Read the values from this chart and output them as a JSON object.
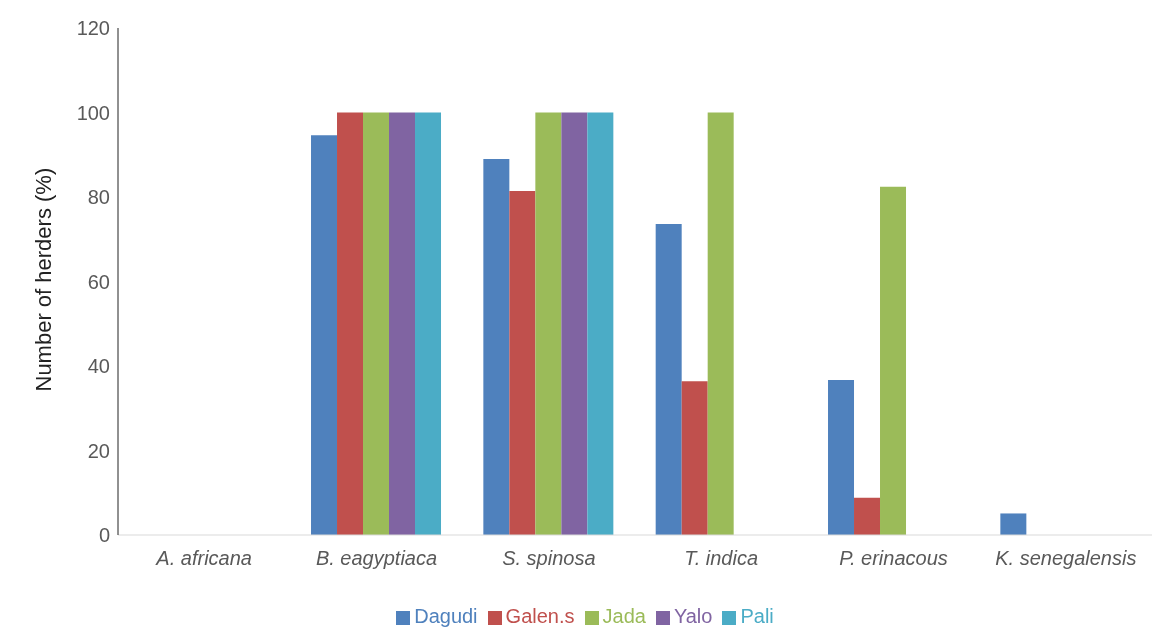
{
  "chart_data": {
    "type": "bar",
    "ylabel": "Number of  herders (%)",
    "categories": [
      "A. africana",
      "B. eagyptiaca",
      "S. spinosa",
      "T. indica",
      "P. erinacous",
      "K. senegalensis"
    ],
    "series": [
      {
        "name": "Dagudi",
        "color": "#4f81bd",
        "values": [
          0,
          94.6,
          89,
          73.6,
          36.7,
          5.1
        ]
      },
      {
        "name": "Galen.s",
        "color": "#c0504d",
        "values": [
          0,
          100,
          81.4,
          36.4,
          8.8,
          0
        ]
      },
      {
        "name": "Jada",
        "color": "#9bbb59",
        "values": [
          0,
          100,
          100,
          100,
          82.4,
          0
        ]
      },
      {
        "name": "Yalo",
        "color": "#8064a2",
        "values": [
          0,
          100,
          100,
          0,
          0,
          0
        ]
      },
      {
        "name": "Pali",
        "color": "#4bacc6",
        "values": [
          0,
          100,
          100,
          0,
          0,
          0
        ]
      }
    ],
    "ylim": [
      0,
      120
    ],
    "yticks": [
      0,
      20,
      40,
      60,
      80,
      100,
      120
    ],
    "grid": false,
    "legend": "bottom"
  }
}
